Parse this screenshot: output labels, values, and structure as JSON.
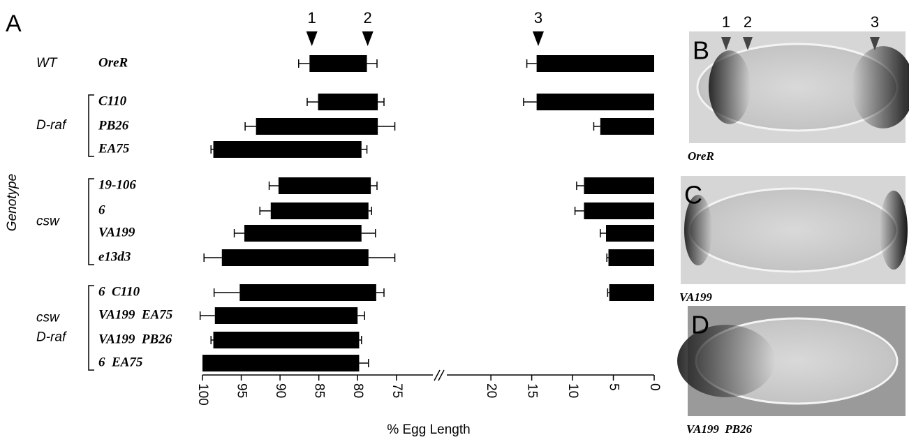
{
  "panel_label": "A",
  "chart_data": {
    "type": "floating-bar",
    "x_label": "% Egg Length",
    "y_label": "Genotype",
    "segments": [
      {
        "xlim": [
          100,
          70.3
        ],
        "xticks": [
          100,
          95,
          90,
          85,
          80,
          75
        ]
      },
      {
        "xlim": [
          25.4,
          0
        ],
        "xticks": [
          20,
          15,
          10,
          5,
          0
        ]
      }
    ],
    "markers": [
      {
        "label": "1",
        "value": 85.9
      },
      {
        "label": "2",
        "value": 78.7
      },
      {
        "label": "3",
        "value": 14.2
      }
    ],
    "groups": [
      {
        "name": [
          "WT"
        ],
        "rows": [
          {
            "label": "OreR",
            "anterior": {
              "start": 86.2,
              "end": 78.8,
              "start_err": 1.4,
              "end_err": 1.3
            },
            "posterior": {
              "start": 14.4,
              "end": 0,
              "start_err": 1.2
            }
          }
        ]
      },
      {
        "name": [
          "D-raf"
        ],
        "rows": [
          {
            "label": "C110",
            "anterior": {
              "start": 85.1,
              "end": 77.4,
              "start_err": 1.4,
              "end_err": 0.8
            },
            "posterior": {
              "start": 14.4,
              "end": 0,
              "start_err": 1.6
            }
          },
          {
            "label": "PB26",
            "anterior": {
              "start": 93.1,
              "end": 77.4,
              "start_err": 1.4,
              "end_err": 2.2
            },
            "posterior": {
              "start": 6.6,
              "end": 0,
              "start_err": 0.8
            }
          },
          {
            "label": "EA75",
            "anterior": {
              "start": 98.6,
              "end": 79.5,
              "start_err": 0.3,
              "end_err": 0.7
            },
            "posterior": null
          }
        ]
      },
      {
        "name": [
          "csw"
        ],
        "rows": [
          {
            "label": "19-106",
            "anterior": {
              "start": 90.2,
              "end": 78.3,
              "start_err": 1.2,
              "end_err": 0.8
            },
            "posterior": {
              "start": 8.6,
              "end": 0,
              "start_err": 0.9
            }
          },
          {
            "label": "6",
            "anterior": {
              "start": 91.2,
              "end": 78.6,
              "start_err": 1.4,
              "end_err": 0.4
            },
            "posterior": {
              "start": 8.6,
              "end": 0,
              "start_err": 1.1
            }
          },
          {
            "label": "VA199",
            "anterior": {
              "start": 94.6,
              "end": 79.5,
              "start_err": 1.3,
              "end_err": 1.8
            },
            "posterior": {
              "start": 5.9,
              "end": 0,
              "start_err": 0.7
            }
          },
          {
            "label": "e13d3",
            "anterior": {
              "start": 97.5,
              "end": 78.6,
              "start_err": 2.3,
              "end_err": 3.4
            },
            "posterior": {
              "start": 5.6,
              "end": 0,
              "start_err": 0.2
            }
          }
        ]
      },
      {
        "name": [
          "csw",
          "D-raf"
        ],
        "rows": [
          {
            "label": "6  C110",
            "anterior": {
              "start": 95.2,
              "end": 77.6,
              "start_err": 3.3,
              "end_err": 1.0
            },
            "posterior": {
              "start": 5.5,
              "end": 0,
              "start_err": 0.2
            }
          },
          {
            "label": "VA199  EA75",
            "anterior": {
              "start": 98.4,
              "end": 80.0,
              "start_err": 1.9,
              "end_err": 0.9
            },
            "posterior": null
          },
          {
            "label": "VA199  PB26",
            "anterior": {
              "start": 98.6,
              "end": 79.8,
              "start_err": 0.3,
              "end_err": 0.3
            },
            "posterior": null
          },
          {
            "label": "6  EA75",
            "anterior": {
              "start": 100,
              "end": 79.8,
              "start_err": 0,
              "end_err": 1.2
            },
            "posterior": null
          }
        ]
      }
    ]
  },
  "panels": [
    {
      "letter": "B",
      "caption": "OreR",
      "markers": [
        "1",
        "2",
        "3"
      ]
    },
    {
      "letter": "C",
      "caption": "VA199",
      "markers": []
    },
    {
      "letter": "D",
      "caption": "VA199  PB26",
      "markers": []
    }
  ]
}
